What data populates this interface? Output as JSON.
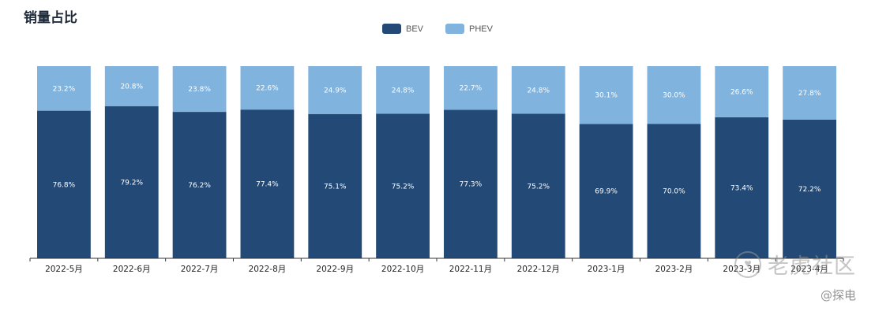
{
  "colors": {
    "bev": "#234a76",
    "phev": "#80b3dd",
    "axis": "#333333"
  },
  "watermark": {
    "main": "老虎社区",
    "sub": "@探电",
    "icon_glyph": "♥"
  },
  "chart_data": {
    "type": "bar",
    "stacked": true,
    "title": "销量占比",
    "categories": [
      "2022-5月",
      "2022-6月",
      "2022-7月",
      "2022-8月",
      "2022-9月",
      "2022-10月",
      "2022-11月",
      "2022-12月",
      "2023-1月",
      "2023-2月",
      "2023-3月",
      "2023-4月"
    ],
    "series": [
      {
        "name": "BEV",
        "values": [
          76.8,
          79.2,
          76.2,
          77.4,
          75.1,
          75.2,
          77.3,
          75.2,
          69.9,
          70.0,
          73.4,
          72.2
        ],
        "labels": [
          "76.8%",
          "79.2%",
          "76.2%",
          "77.4%",
          "75.1%",
          "75.2%",
          "77.3%",
          "75.2%",
          "69.9%",
          "70.0%",
          "73.4%",
          "72.2%"
        ]
      },
      {
        "name": "PHEV",
        "values": [
          23.2,
          20.8,
          23.8,
          22.6,
          24.9,
          24.8,
          22.7,
          24.8,
          30.1,
          30.0,
          26.6,
          27.8
        ],
        "labels": [
          "23.2%",
          "20.8%",
          "23.8%",
          "22.6%",
          "24.9%",
          "24.8%",
          "22.7%",
          "24.8%",
          "30.1%",
          "30.0%",
          "26.6%",
          "27.8%"
        ]
      }
    ],
    "ylim": [
      0,
      100
    ],
    "grid": false,
    "legend_position": "top-center",
    "xlabel": "",
    "ylabel": ""
  }
}
